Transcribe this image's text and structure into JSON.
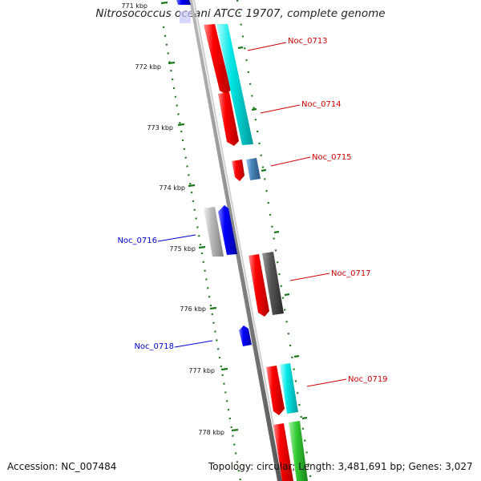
{
  "title": "Nitrosococcus oceani ATCC 19707, complete genome",
  "footer": {
    "accession": "Accession: NC_007484",
    "summary": "Topology: circular; Length: 3,481,691 bp; Genes: 3,027"
  },
  "colors": {
    "forward_cds": "#ff0000",
    "reverse_cds": "#0000ff",
    "cyan_track": "#00e0e0",
    "steelblue_track": "#4682b4",
    "gray_track": "#555555",
    "lightgray_track": "#b0b0b0",
    "green_track": "#33cc33",
    "backbone": "#888888",
    "tick": "#1a7a1a"
  },
  "scale_labels": [
    "771 kbp",
    "772 kbp",
    "773 kbp",
    "774 kbp",
    "775 kbp",
    "776 kbp",
    "777 kbp",
    "778 kbp"
  ],
  "gene_labels": [
    {
      "text": "Noc_0713",
      "color": "#cc0000"
    },
    {
      "text": "Noc_0714",
      "color": "#cc0000"
    },
    {
      "text": "Noc_0715",
      "color": "#cc0000"
    },
    {
      "text": "Noc_0716",
      "color": "#0000cc"
    },
    {
      "text": "Noc_0717",
      "color": "#cc0000"
    },
    {
      "text": "Noc_0718",
      "color": "#0000cc"
    },
    {
      "text": "Noc_0719",
      "color": "#cc0000"
    }
  ]
}
